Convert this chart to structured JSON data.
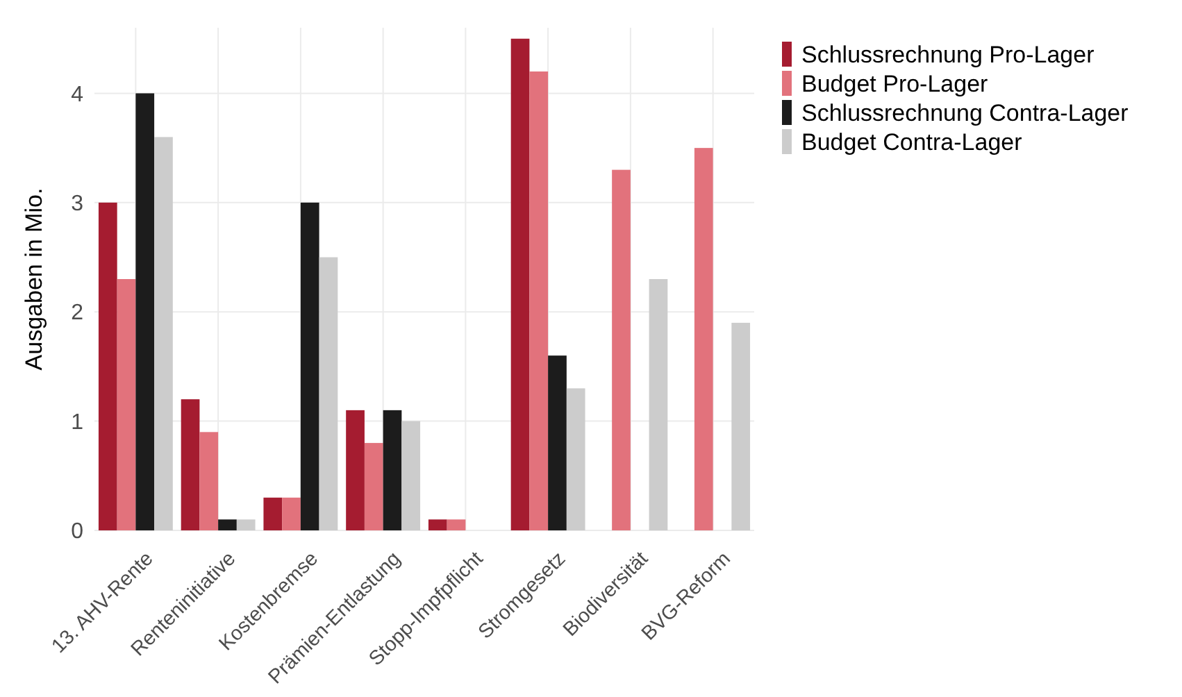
{
  "chart_data": {
    "type": "bar",
    "ylabel": "Ausgaben in Mio.",
    "categories": [
      "13. AHV-Rente",
      "Renteninitiative",
      "Kostenbremse",
      "Prämien-Entlastung",
      "Stopp-Impfpflicht",
      "Stromgesetz",
      "Biodiversität",
      "BVG-Reform"
    ],
    "series": [
      {
        "name": "Schlussrechnung Pro-Lager",
        "color": "#a51c30",
        "values": [
          3.0,
          1.2,
          0.3,
          1.1,
          0.1,
          4.5,
          null,
          null
        ]
      },
      {
        "name": "Budget Pro-Lager",
        "color": "#e2727c",
        "values": [
          2.3,
          0.9,
          0.3,
          0.8,
          0.1,
          4.2,
          3.3,
          3.5
        ]
      },
      {
        "name": "Schlussrechnung Contra-Lager",
        "color": "#1c1c1c",
        "values": [
          4.0,
          0.1,
          3.0,
          1.1,
          null,
          1.6,
          null,
          null
        ]
      },
      {
        "name": "Budget Contra-Lager",
        "color": "#cccccc",
        "values": [
          3.6,
          0.1,
          2.5,
          1.0,
          null,
          1.3,
          2.3,
          1.9
        ]
      }
    ],
    "ylim": [
      0,
      4.6
    ],
    "yticks": [
      0,
      1,
      2,
      3,
      4
    ],
    "grid": true,
    "legend": "top right"
  }
}
